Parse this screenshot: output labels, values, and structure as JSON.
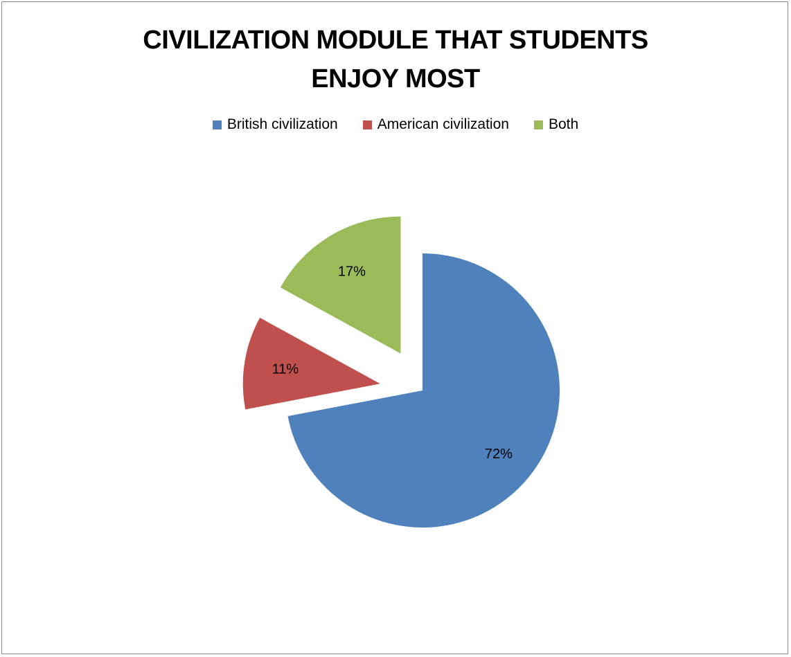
{
  "chart_data": {
    "type": "pie",
    "title_lines": [
      "CIVILIZATION MODULE THAT STUDENTS",
      "ENJOY MOST"
    ],
    "legend_position": "top",
    "categories": [
      "British civilization",
      "American civilization",
      "Both"
    ],
    "values": [
      72,
      11,
      17
    ],
    "value_labels": [
      "72%",
      "11%",
      "17%"
    ],
    "colors": [
      "#4F81BD",
      "#C0504D",
      "#9BBB59"
    ],
    "exploded": [
      false,
      true,
      true
    ]
  }
}
